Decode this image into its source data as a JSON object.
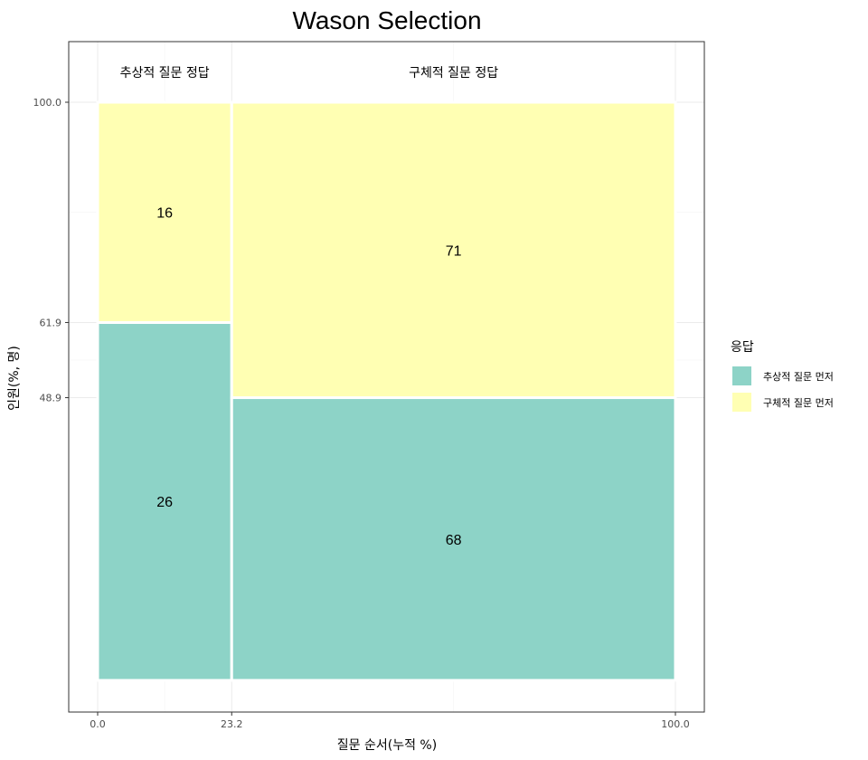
{
  "chart_data": {
    "type": "mosaic",
    "title": "Wason Selection",
    "xlabel": "질문 순서(누적 %)",
    "ylabel": "인원(%, 명)",
    "xlim": [
      0,
      100
    ],
    "ylim": [
      0,
      100
    ],
    "x_ticks": [
      "0.0",
      "23.2",
      "100.0"
    ],
    "y_ticks": [
      "48.9",
      "61.9",
      "100.0"
    ],
    "columns": [
      {
        "label": "추상적 질문 정답",
        "x_start": 0,
        "x_end": 23.2,
        "cells": [
          {
            "fill_key": "추상적 질문 먼저",
            "count": 26,
            "y_start": 0,
            "y_end": 61.9
          },
          {
            "fill_key": "구체적 질문 먼저",
            "count": 16,
            "y_start": 61.9,
            "y_end": 100
          }
        ]
      },
      {
        "label": "구체적 질문 정답",
        "x_start": 23.2,
        "x_end": 100,
        "cells": [
          {
            "fill_key": "추상적 질문 먼저",
            "count": 68,
            "y_start": 0,
            "y_end": 48.9
          },
          {
            "fill_key": "구체적 질문 먼저",
            "count": 71,
            "y_start": 48.9,
            "y_end": 100
          }
        ]
      }
    ],
    "legend": {
      "title": "응답",
      "position": "right",
      "entries": [
        {
          "label": "추상적 질문 먼저",
          "color": "#8DD3C7"
        },
        {
          "label": "구체적 질문 먼저",
          "color": "#FFFFB3"
        }
      ]
    },
    "grid": true
  }
}
